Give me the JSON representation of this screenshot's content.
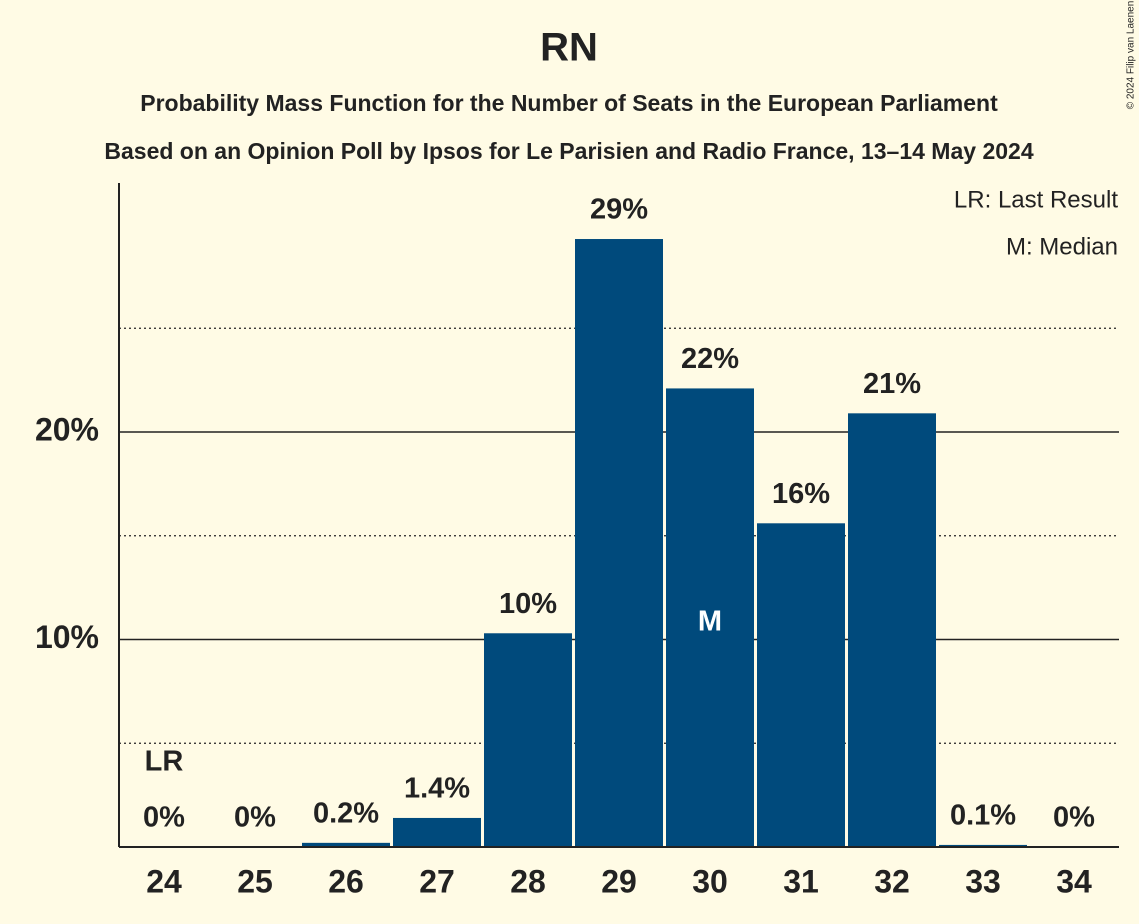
{
  "chart_data": {
    "type": "bar",
    "title": "RN",
    "subtitles": [
      "Probability Mass Function for the Number of Seats in the European Parliament",
      "Based on an Opinion Poll by Ipsos for Le Parisien and Radio France, 13–14 May 2024"
    ],
    "categories": [
      "24",
      "25",
      "26",
      "27",
      "28",
      "29",
      "30",
      "31",
      "32",
      "33",
      "34"
    ],
    "values": [
      0,
      0,
      0.2,
      1.4,
      10.3,
      29.3,
      22.1,
      15.6,
      20.9,
      0.1,
      0
    ],
    "value_labels": [
      "0%",
      "0%",
      "0.2%",
      "1.4%",
      "10%",
      "29%",
      "22%",
      "16%",
      "21%",
      "0.1%",
      "0%"
    ],
    "color": "#004a7c",
    "ylim": [
      0,
      32
    ],
    "yticks": [
      {
        "value": 10,
        "label": "10%"
      },
      {
        "value": 20,
        "label": "20%"
      }
    ],
    "minor_yticks": [
      5,
      15,
      25
    ],
    "grid": true,
    "last_result": {
      "label": "LR",
      "category": "24"
    },
    "median": {
      "label": "M",
      "category": "30"
    },
    "legend": [
      "LR: Last Result",
      "M: Median"
    ],
    "credit": "© 2024 Filip van Laenen"
  }
}
